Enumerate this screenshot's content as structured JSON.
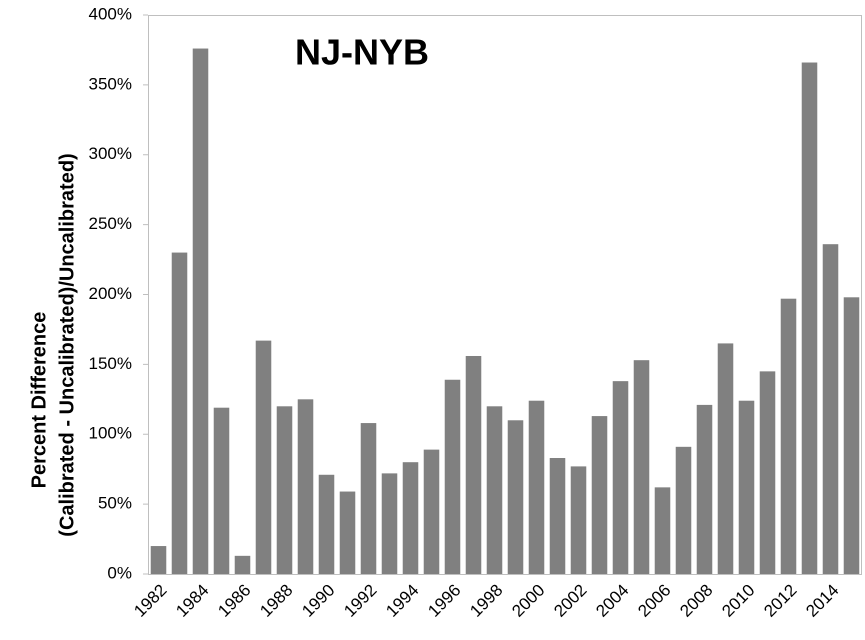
{
  "chart_data": {
    "type": "bar",
    "title": "NJ-NYB",
    "ylabel": [
      "Percent Difference",
      "(Calibrated - Uncalibrated)/Uncalibrated)"
    ],
    "categories": [
      "1982",
      null,
      "1984",
      null,
      "1986",
      null,
      "1988",
      null,
      "1990",
      null,
      "1992",
      null,
      "1994",
      null,
      "1996",
      null,
      "1998",
      null,
      "2000",
      null,
      "2002",
      null,
      "2004",
      null,
      "2006",
      null,
      "2008",
      null,
      "2010",
      null,
      "2012",
      null,
      "2014",
      null
    ],
    "values": [
      20,
      230,
      376,
      119,
      13,
      167,
      120,
      125,
      71,
      59,
      108,
      72,
      80,
      89,
      139,
      156,
      120,
      110,
      124,
      83,
      77,
      113,
      138,
      153,
      62,
      91,
      121,
      165,
      124,
      145,
      197,
      366,
      236,
      198
    ],
    "color": "#808080",
    "ylim": [
      0,
      400
    ],
    "yticks": [
      {
        "value": 0,
        "label": "0%"
      },
      {
        "value": 50,
        "label": "50%"
      },
      {
        "value": 100,
        "label": "100%"
      },
      {
        "value": 150,
        "label": "150%"
      },
      {
        "value": 200,
        "label": "200%"
      },
      {
        "value": 250,
        "label": "250%"
      },
      {
        "value": 300,
        "label": "300%"
      },
      {
        "value": 350,
        "label": "350%"
      },
      {
        "value": 400,
        "label": "400%"
      }
    ],
    "grid": false
  }
}
